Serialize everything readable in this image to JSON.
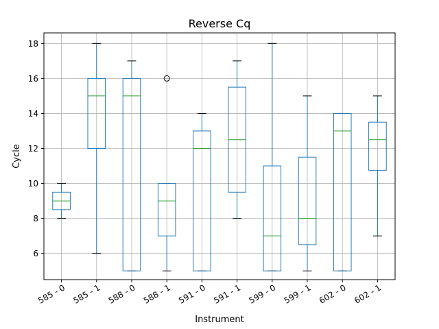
{
  "chart_data": {
    "type": "box",
    "title": "Reverse Cq",
    "xlabel": "Instrument",
    "ylabel": "Cycle",
    "ylim": [
      4.5,
      18.6
    ],
    "yticks": [
      6,
      8,
      10,
      12,
      14,
      16,
      18
    ],
    "grid": true,
    "colors": {
      "box": "#1f77b4",
      "median": "#2ca02c",
      "whisker": "#1f77b4",
      "cap": "#000000",
      "flier": "#000000",
      "grid": "#b0b0b0"
    },
    "categories": [
      "585 - 0",
      "585 - 1",
      "588 - 0",
      "588 - 1",
      "591 - 0",
      "591 - 1",
      "599 - 0",
      "599 - 1",
      "602 - 0",
      "602 - 1"
    ],
    "boxes": [
      {
        "label": "585 - 0",
        "whislo": 8,
        "q1": 8.5,
        "med": 9,
        "q3": 9.5,
        "whishi": 10,
        "fliers": []
      },
      {
        "label": "585 - 1",
        "whislo": 6,
        "q1": 12,
        "med": 15,
        "q3": 16,
        "whishi": 18,
        "fliers": []
      },
      {
        "label": "588 - 0",
        "whislo": 5,
        "q1": 5,
        "med": 15,
        "q3": 16,
        "whishi": 17,
        "fliers": []
      },
      {
        "label": "588 - 1",
        "whislo": 5,
        "q1": 7,
        "med": 9,
        "q3": 10,
        "whishi": 10,
        "fliers": [
          16
        ]
      },
      {
        "label": "591 - 0",
        "whislo": 5,
        "q1": 5,
        "med": 12,
        "q3": 13,
        "whishi": 14,
        "fliers": []
      },
      {
        "label": "591 - 1",
        "whislo": 8,
        "q1": 9.5,
        "med": 12.5,
        "q3": 15.5,
        "whishi": 17,
        "fliers": []
      },
      {
        "label": "599 - 0",
        "whislo": 5,
        "q1": 5,
        "med": 7,
        "q3": 11,
        "whishi": 18,
        "fliers": []
      },
      {
        "label": "599 - 1",
        "whislo": 5,
        "q1": 6.5,
        "med": 8,
        "q3": 11.5,
        "whishi": 15,
        "fliers": []
      },
      {
        "label": "602 - 0",
        "whislo": 5,
        "q1": 5,
        "med": 13,
        "q3": 14,
        "whishi": 14,
        "fliers": []
      },
      {
        "label": "602 - 1",
        "whislo": 7,
        "q1": 10.75,
        "med": 12.5,
        "q3": 13.5,
        "whishi": 15,
        "fliers": []
      }
    ]
  }
}
